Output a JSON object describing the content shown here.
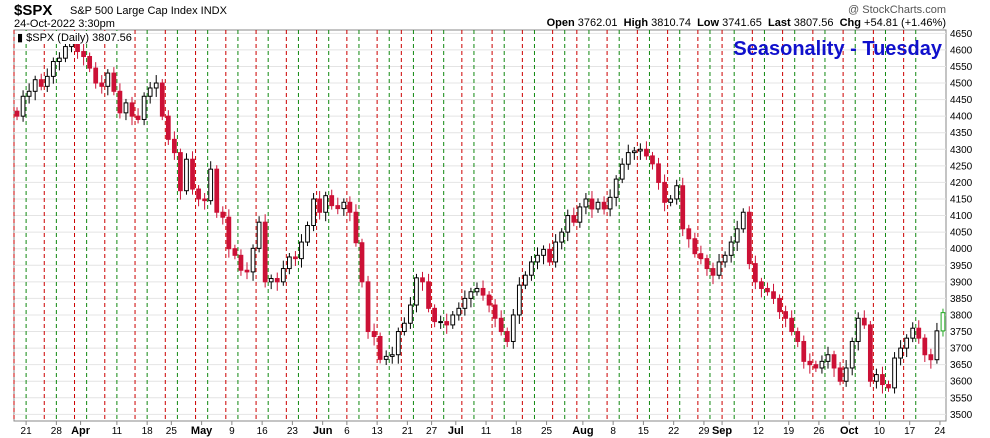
{
  "header": {
    "symbol": "$SPX",
    "name": "S&P 500 Large Cap Index INDX",
    "date": "24-Oct-2022 3:30pm",
    "open_label": "Open",
    "open": "3762.01",
    "high_label": "High",
    "high": "3810.74",
    "low_label": "Low",
    "low": "3741.65",
    "last_label": "Last",
    "last": "3807.56",
    "chg_label": "Chg",
    "chg": "+54.81 (+1.46%)",
    "watermark": "@ StockCharts.com"
  },
  "legend": {
    "text": "$SPX (Daily) 3807.56"
  },
  "overlay_title": "Seasonality - Tuesday",
  "colors": {
    "up": "#000000",
    "down": "#cc1136",
    "last_up": "#22aa22",
    "red_line": "#cc0000",
    "green_line": "#118811",
    "title": "#1010cc"
  },
  "chart_data": {
    "type": "candlestick",
    "title": "Seasonality - Tuesday",
    "ylim": [
      3480,
      4660
    ],
    "yticks": [
      3500,
      3550,
      3600,
      3650,
      3700,
      3750,
      3800,
      3850,
      3900,
      3950,
      4000,
      4050,
      4100,
      4150,
      4200,
      4250,
      4300,
      4350,
      4400,
      4450,
      4500,
      4550,
      4600,
      4650
    ],
    "xlabels": [
      {
        "label": "21",
        "i": 2,
        "major": false
      },
      {
        "label": "28",
        "i": 7,
        "major": false
      },
      {
        "label": "Apr",
        "i": 11,
        "major": true
      },
      {
        "label": "11",
        "i": 17,
        "major": false
      },
      {
        "label": "18",
        "i": 22,
        "major": false
      },
      {
        "label": "25",
        "i": 26,
        "major": false
      },
      {
        "label": "May",
        "i": 31,
        "major": true
      },
      {
        "label": "9",
        "i": 36,
        "major": false
      },
      {
        "label": "16",
        "i": 41,
        "major": false
      },
      {
        "label": "23",
        "i": 46,
        "major": false
      },
      {
        "label": "Jun",
        "i": 51,
        "major": true
      },
      {
        "label": "6",
        "i": 55,
        "major": false
      },
      {
        "label": "13",
        "i": 60,
        "major": false
      },
      {
        "label": "21",
        "i": 65,
        "major": false
      },
      {
        "label": "27",
        "i": 69,
        "major": false
      },
      {
        "label": "Jul",
        "i": 73,
        "major": true
      },
      {
        "label": "11",
        "i": 78,
        "major": false
      },
      {
        "label": "18",
        "i": 83,
        "major": false
      },
      {
        "label": "25",
        "i": 88,
        "major": false
      },
      {
        "label": "Aug",
        "i": 94,
        "major": true
      },
      {
        "label": "8",
        "i": 99,
        "major": false
      },
      {
        "label": "15",
        "i": 104,
        "major": false
      },
      {
        "label": "22",
        "i": 109,
        "major": false
      },
      {
        "label": "29",
        "i": 114,
        "major": false
      },
      {
        "label": "Sep",
        "i": 117,
        "major": true
      },
      {
        "label": "12",
        "i": 123,
        "major": false
      },
      {
        "label": "19",
        "i": 128,
        "major": false
      },
      {
        "label": "26",
        "i": 133,
        "major": false
      },
      {
        "label": "Oct",
        "i": 138,
        "major": true
      },
      {
        "label": "10",
        "i": 143,
        "major": false
      },
      {
        "label": "17",
        "i": 148,
        "major": false
      },
      {
        "label": "24",
        "i": 153,
        "major": false
      }
    ],
    "green_lines": [
      2,
      7,
      12,
      17,
      22,
      27,
      32,
      37,
      42,
      47,
      52,
      57,
      62,
      66,
      71,
      76,
      81,
      86,
      91,
      95,
      100,
      105,
      110,
      115,
      119,
      124,
      129,
      134,
      139,
      144,
      149
    ],
    "red_lines": [
      0,
      5,
      10,
      15,
      20,
      25,
      30,
      35,
      40,
      45,
      50,
      55,
      60,
      64,
      69,
      74,
      79,
      84,
      89,
      93,
      98,
      103,
      108,
      113,
      117,
      122,
      127,
      132,
      137,
      142,
      147
    ],
    "closes": [
      4400,
      4460,
      4475,
      4510,
      4490,
      4520,
      4565,
      4575,
      4610,
      4630,
      4595,
      4580,
      4545,
      4500,
      4490,
      4530,
      4475,
      4410,
      4440,
      4400,
      4390,
      4460,
      4485,
      4500,
      4400,
      4330,
      4290,
      4175,
      4270,
      4180,
      4150,
      4145,
      4240,
      4110,
      4095,
      4000,
      3980,
      3935,
      3930,
      4001,
      4080,
      3900,
      3910,
      3900,
      3940,
      3975,
      3970,
      4020,
      4070,
      4150,
      4110,
      4160,
      4130,
      4121,
      4140,
      4110,
      4018,
      3900,
      3750,
      3735,
      3666,
      3675,
      3680,
      3750,
      3775,
      3830,
      3912,
      3900,
      3820,
      3780,
      3780,
      3770,
      3800,
      3820,
      3850,
      3870,
      3880,
      3860,
      3830,
      3790,
      3750,
      3720,
      3800,
      3890,
      3920,
      3960,
      3980,
      3998,
      3960,
      4020,
      4050,
      4100,
      4080,
      4126,
      4150,
      4120,
      4140,
      4120,
      4155,
      4210,
      4255,
      4290,
      4295,
      4300,
      4280,
      4256,
      4200,
      4140,
      4150,
      4190,
      4060,
      4030,
      3985,
      3970,
      3940,
      3920,
      3960,
      3980,
      4020,
      4060,
      4110,
      3955,
      3900,
      3880,
      3870,
      3850,
      3810,
      3790,
      3750,
      3720,
      3660,
      3650,
      3640,
      3660,
      3680,
      3640,
      3600,
      3640,
      3720,
      3790,
      3770,
      3600,
      3620,
      3590,
      3580,
      3670,
      3700,
      3730,
      3760,
      3730,
      3680,
      3665,
      3752,
      3807
    ]
  }
}
